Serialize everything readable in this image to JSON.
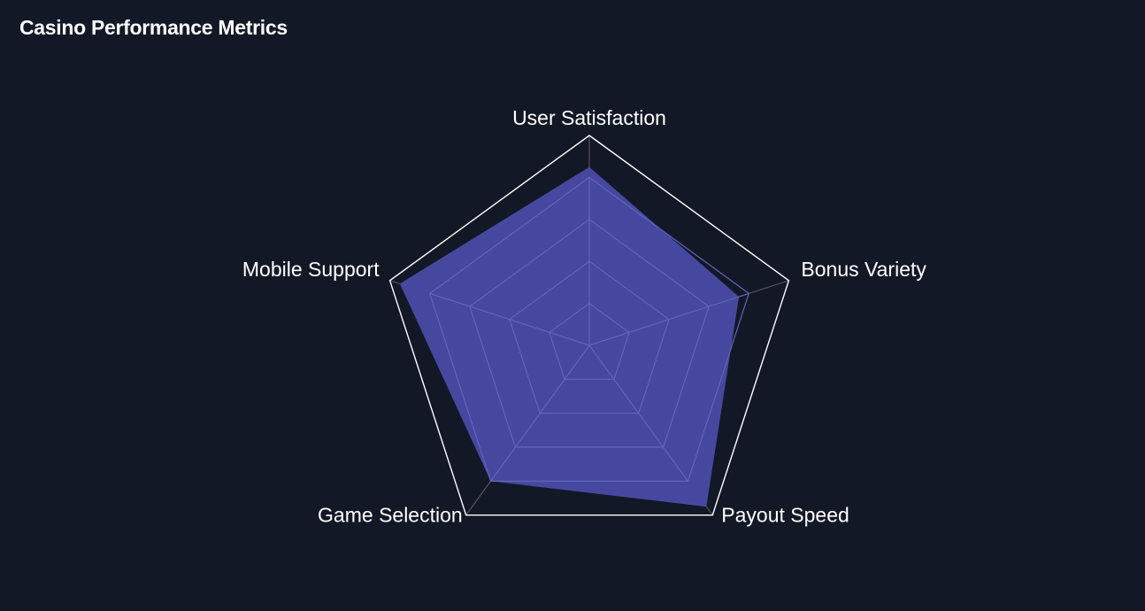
{
  "chart_data": {
    "type": "radar",
    "title": "Casino Performance Metrics",
    "axes": [
      "User Satisfaction",
      "Bonus Variety",
      "Payout Speed",
      "Game Selection",
      "Mobile Support"
    ],
    "series": [
      {
        "values": [
          85,
          75,
          95,
          80,
          95
        ]
      }
    ],
    "range": [
      0,
      100
    ],
    "grid_levels": [
      20,
      40,
      60,
      80
    ],
    "colors": {
      "background": "#131826",
      "fill": "#4648a0",
      "outer_frame": "#ffffff",
      "inner_grid": "#6164b8",
      "spokes": "#555555",
      "text": "#ffffff"
    }
  }
}
